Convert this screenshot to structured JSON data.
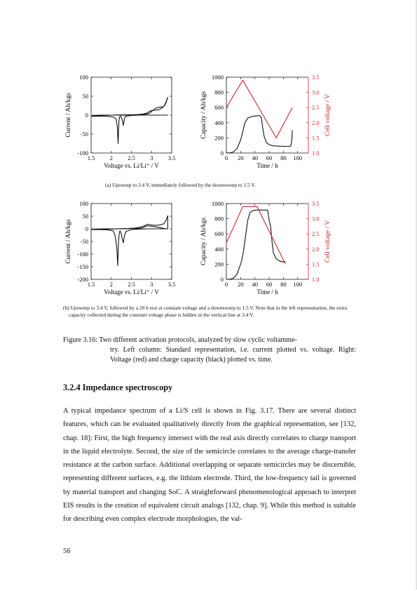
{
  "figure": {
    "panel_a": {
      "left_chart": {
        "type": "line",
        "ylabel": "Current / Ah/kgs",
        "xlabel": "Voltage vs. Li/Li⁺ / V",
        "x_ticks": [
          "1.5",
          "2",
          "2.5",
          "3",
          "3.5"
        ],
        "y_ticks": [
          "100",
          "50",
          "0",
          "-50",
          "-100"
        ],
        "xlim": [
          1.5,
          3.5
        ],
        "ylim": [
          -100,
          100
        ],
        "reference_line_y": 0,
        "series": [
          {
            "values": [
              [
                1.5,
                -3
              ],
              [
                1.7,
                -3
              ],
              [
                1.9,
                -3
              ],
              [
                2.05,
                -5
              ],
              [
                2.12,
                -10
              ],
              [
                2.15,
                -30
              ],
              [
                2.17,
                -75
              ],
              [
                2.19,
                -15
              ],
              [
                2.21,
                -4
              ],
              [
                2.24,
                -3
              ],
              [
                2.27,
                -12
              ],
              [
                2.3,
                -27
              ],
              [
                2.33,
                -8
              ],
              [
                2.36,
                -3
              ],
              [
                2.5,
                -1
              ],
              [
                2.7,
                0
              ],
              [
                2.9,
                0
              ],
              [
                3.1,
                0
              ],
              [
                3.3,
                0
              ],
              [
                3.4,
                0
              ]
            ]
          },
          {
            "values": [
              [
                1.5,
                -3
              ],
              [
                1.55,
                -1
              ],
              [
                1.7,
                0
              ],
              [
                2.0,
                0
              ],
              [
                2.3,
                0
              ],
              [
                2.6,
                1
              ],
              [
                2.8,
                3
              ],
              [
                2.9,
                6
              ],
              [
                2.95,
                10
              ],
              [
                3.0,
                12
              ],
              [
                3.1,
                13
              ],
              [
                3.2,
                15
              ],
              [
                3.3,
                22
              ],
              [
                3.35,
                32
              ],
              [
                3.4,
                47
              ]
            ]
          },
          {
            "values": [
              [
                3.4,
                47
              ],
              [
                3.35,
                30
              ],
              [
                3.3,
                22
              ],
              [
                3.2,
                21
              ],
              [
                3.1,
                18
              ],
              [
                3.0,
                10
              ],
              [
                2.95,
                5
              ],
              [
                2.9,
                3
              ],
              [
                2.8,
                2
              ],
              [
                2.7,
                1.5
              ],
              [
                2.5,
                1
              ],
              [
                2.2,
                0.5
              ],
              [
                2.0,
                0
              ],
              [
                1.7,
                -1
              ],
              [
                1.5,
                -3
              ]
            ]
          }
        ]
      },
      "right_chart": {
        "type": "line",
        "ylabel": "Capacity / Ah/kgs",
        "xlabel": "Time / h",
        "y2label": "Cell voltage / V",
        "x_ticks": [
          "0",
          "20",
          "40",
          "60",
          "80",
          "100"
        ],
        "y_ticks": [
          "1000",
          "800",
          "600",
          "400",
          "200",
          "0"
        ],
        "y2_ticks": [
          "3.5",
          "3.0",
          "2.5",
          "2.0",
          "1.5",
          "1.0"
        ],
        "xlim": [
          0,
          115
        ],
        "ylim": [
          0,
          1000
        ],
        "y2lim": [
          1.0,
          3.5
        ],
        "voltage_color": "#c8282d",
        "series": [
          {
            "name": "Capacity",
            "color": "#111111",
            "values": [
              [
                0,
                0
              ],
              [
                5,
                2
              ],
              [
                10,
                15
              ],
              [
                15,
                60
              ],
              [
                20,
                170
              ],
              [
                23,
                280
              ],
              [
                26,
                400
              ],
              [
                30,
                460
              ],
              [
                35,
                480
              ],
              [
                42,
                490
              ],
              [
                46,
                495
              ],
              [
                49,
                470
              ],
              [
                51,
                330
              ],
              [
                53,
                220
              ],
              [
                56,
                140
              ],
              [
                60,
                110
              ],
              [
                65,
                95
              ],
              [
                75,
                90
              ],
              [
                85,
                88
              ],
              [
                90,
                90
              ],
              [
                91,
                120
              ],
              [
                92,
                200
              ],
              [
                92.5,
                300
              ]
            ]
          },
          {
            "name": "Cell voltage",
            "color": "#c8282d",
            "y_axis": "right",
            "values": [
              [
                0,
                2.5
              ],
              [
                23,
                3.4
              ],
              [
                70,
                1.5
              ],
              [
                92.5,
                2.5
              ]
            ]
          }
        ]
      },
      "caption": "(a) Upsweep to 3.4 V, immediately followed by the downsweep to 1.5 V."
    },
    "panel_b": {
      "left_chart": {
        "type": "line",
        "ylabel": "Current / Ah/kgs",
        "xlabel": "Voltage vs. Li/Li⁺ / V",
        "x_ticks": [
          "1.5",
          "2",
          "2.5",
          "3",
          "3.5"
        ],
        "y_ticks": [
          "100",
          "50",
          "0",
          "-50",
          "-100",
          "-150",
          "-200"
        ],
        "xlim": [
          1.5,
          3.5
        ],
        "ylim": [
          -200,
          100
        ],
        "reference_line_y": 0,
        "series": [
          {
            "values": [
              [
                1.5,
                -3
              ],
              [
                1.7,
                -3
              ],
              [
                1.9,
                -4
              ],
              [
                2.05,
                -8
              ],
              [
                2.1,
                -30
              ],
              [
                2.14,
                -80
              ],
              [
                2.16,
                -145
              ],
              [
                2.18,
                -50
              ],
              [
                2.2,
                -15
              ],
              [
                2.22,
                -8
              ],
              [
                2.25,
                -20
              ],
              [
                2.28,
                -45
              ],
              [
                2.3,
                -55
              ],
              [
                2.33,
                -25
              ],
              [
                2.37,
                -10
              ],
              [
                2.5,
                -3
              ],
              [
                2.7,
                -1
              ],
              [
                2.9,
                0
              ],
              [
                3.1,
                0
              ],
              [
                3.3,
                0
              ],
              [
                3.4,
                0
              ]
            ]
          },
          {
            "values": [
              [
                1.5,
                -3
              ],
              [
                1.6,
                -1
              ],
              [
                1.8,
                0
              ],
              [
                2.1,
                0
              ],
              [
                2.4,
                1
              ],
              [
                2.6,
                3
              ],
              [
                2.75,
                8
              ],
              [
                2.85,
                14
              ],
              [
                2.9,
                18
              ],
              [
                3.0,
                15
              ],
              [
                3.1,
                14
              ],
              [
                3.2,
                15
              ],
              [
                3.3,
                20
              ],
              [
                3.35,
                30
              ],
              [
                3.4,
                52
              ]
            ]
          },
          {
            "values": [
              [
                3.4,
                52
              ],
              [
                3.4,
                0
              ],
              [
                3.35,
                0
              ],
              [
                3.2,
                5
              ],
              [
                3.1,
                8
              ],
              [
                3.0,
                10
              ],
              [
                2.9,
                12
              ],
              [
                2.85,
                10
              ],
              [
                2.8,
                5
              ],
              [
                2.7,
                2
              ],
              [
                2.5,
                1
              ],
              [
                2.2,
                0
              ],
              [
                1.9,
                -1
              ],
              [
                1.7,
                -2
              ],
              [
                1.5,
                -3
              ]
            ]
          }
        ]
      },
      "right_chart": {
        "type": "line",
        "ylabel": "Capacity / Ah/kgs",
        "xlabel": "Time / h",
        "y2label": "Cell voltage / V",
        "x_ticks": [
          "0",
          "20",
          "40",
          "60",
          "80",
          "100"
        ],
        "y_ticks": [
          "1000",
          "800",
          "600",
          "400",
          "200",
          "0"
        ],
        "y2_ticks": [
          "3.5",
          "3.0",
          "2.5",
          "2.0",
          "1.5",
          "1.0"
        ],
        "xlim": [
          0,
          115
        ],
        "ylim": [
          0,
          1000
        ],
        "y2lim": [
          1.0,
          3.5
        ],
        "voltage_color": "#c8282d",
        "series": [
          {
            "name": "Capacity",
            "color": "#111111",
            "values": [
              [
                0,
                0
              ],
              [
                5,
                2
              ],
              [
                10,
                15
              ],
              [
                15,
                70
              ],
              [
                18,
                150
              ],
              [
                21,
                230
              ],
              [
                24,
                370
              ],
              [
                27,
                580
              ],
              [
                30,
                780
              ],
              [
                33,
                880
              ],
              [
                38,
                910
              ],
              [
                45,
                915
              ],
              [
                55,
                915
              ],
              [
                58,
                910
              ],
              [
                60,
                780
              ],
              [
                62,
                700
              ],
              [
                64,
                500
              ],
              [
                66,
                350
              ],
              [
                70,
                270
              ],
              [
                75,
                240
              ],
              [
                80,
                230
              ],
              [
                83,
                235
              ]
            ]
          },
          {
            "name": "Cell voltage",
            "color": "#c8282d",
            "y_axis": "right",
            "values": [
              [
                0,
                2.2
              ],
              [
                23,
                3.4
              ],
              [
                43,
                3.4
              ],
              [
                83,
                1.5
              ]
            ]
          }
        ]
      },
      "caption": "(b) Upsweep to 3.4 V, followed by a 20 h rest at constant voltage and a downsweep to 1.5 V. Note that in the left representation, the extra capacity collected during the constant voltage phase is hidden in the vertical line at 3.4 V."
    },
    "caption_lead": "Figure 3.16: Two different activation protocols, analyzed by slow cyclic voltamme-",
    "caption_rest": "try. Left column: Standard representation, i.e. current plotted vs. voltage. Right: Voltage (red) and charge capacity (black) plotted vs. time."
  },
  "section": {
    "title": "3.2.4 Impedance spectroscopy",
    "paragraph": "A typical impedance spectrum of a Li/S cell is shown in Fig. 3.17. There are several distinct features, which can be evaluated qualitatively directly from the graphical representation, see [132, chap. 18]: First, the high frequency intersect with the real axis directly correlates to charge transport in the liquid electrolyte. Second, the size of the semicircle correlates to the average charge-transfer resistance at the carbon surface. Additional overlapping or separate semicircles may be discernible, representing different surfaces, e.g. the lithium electrode. Third, the low-frequency tail is governed by material transport and changing SoC. A straightforward phenomenological approach to interpret EIS results is the creation of equivalent circuit analogs [132, chap. 9]. While this method is suitable for describing even complex electrode morphologies, the val-"
  },
  "page_number": "56"
}
